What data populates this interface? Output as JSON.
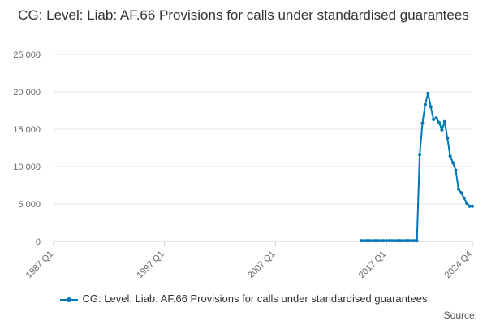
{
  "chart_data": {
    "type": "line",
    "title": "CG: Level: Liab: AF.66 Provisions for calls under standardised guarantees",
    "xlabel": "",
    "ylabel": "",
    "ylim": [
      0,
      25000
    ],
    "y_ticks": [
      0,
      5000,
      10000,
      15000,
      20000,
      25000
    ],
    "y_tick_labels": [
      "0",
      "5 000",
      "10 000",
      "15 000",
      "20 000",
      "25 000"
    ],
    "x_ticks": [
      "1987 Q1",
      "1997 Q1",
      "2007 Q1",
      "2017 Q1",
      "2024 Q4"
    ],
    "grid": true,
    "legend_position": "bottom",
    "series": [
      {
        "name": "CG: Level: Liab: AF.66 Provisions for calls under standardised guarantees",
        "color": "#0077b6",
        "x": [
          "2014 Q4",
          "2015 Q1",
          "2015 Q2",
          "2015 Q3",
          "2015 Q4",
          "2016 Q1",
          "2016 Q2",
          "2016 Q3",
          "2016 Q4",
          "2017 Q1",
          "2017 Q2",
          "2017 Q3",
          "2017 Q4",
          "2018 Q1",
          "2018 Q2",
          "2018 Q3",
          "2018 Q4",
          "2019 Q1",
          "2019 Q2",
          "2019 Q3",
          "2019 Q4",
          "2020 Q1",
          "2020 Q2",
          "2020 Q3",
          "2020 Q4",
          "2021 Q1",
          "2021 Q2",
          "2021 Q3",
          "2021 Q4",
          "2022 Q1",
          "2022 Q2",
          "2022 Q3",
          "2022 Q4",
          "2023 Q1",
          "2023 Q2",
          "2023 Q3",
          "2023 Q4",
          "2024 Q1",
          "2024 Q2",
          "2024 Q3",
          "2024 Q4"
        ],
        "values": [
          100,
          100,
          100,
          100,
          100,
          100,
          100,
          100,
          100,
          100,
          100,
          100,
          100,
          100,
          100,
          100,
          100,
          100,
          100,
          100,
          100,
          11600,
          15800,
          18300,
          19800,
          18000,
          16300,
          16500,
          15900,
          14900,
          16000,
          13800,
          11400,
          10500,
          9500,
          7000,
          6500,
          5800,
          5100,
          4700,
          4700
        ]
      }
    ]
  },
  "legend_label": "CG: Level: Liab: AF.66 Provisions for calls under standardised guarantees",
  "source_label": "Source:"
}
